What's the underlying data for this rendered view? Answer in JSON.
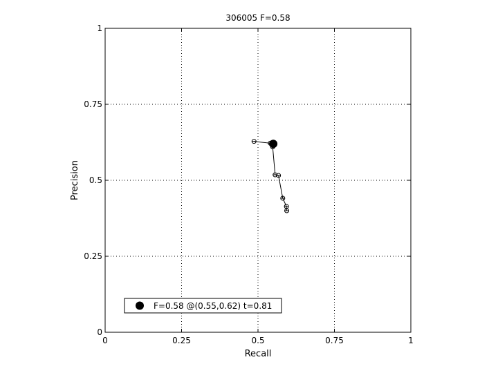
{
  "chart_data": {
    "type": "line",
    "title": "306005 F=0.58",
    "xlabel": "Recall",
    "ylabel": "Precision",
    "xlim": [
      0,
      1
    ],
    "ylim": [
      0,
      1
    ],
    "xticks": [
      0,
      0.25,
      0.5,
      0.75,
      1
    ],
    "yticks": [
      0,
      0.25,
      0.5,
      0.75,
      1
    ],
    "xtick_labels": [
      "0",
      "0.25",
      "0.5",
      "0.75",
      "1"
    ],
    "ytick_labels": [
      "0",
      "0.25",
      "0.5",
      "0.75",
      "1"
    ],
    "grid": true,
    "legend_position": "bottom-left",
    "series": [
      {
        "x": [
          0.487,
          0.54,
          0.545,
          0.548,
          0.556,
          0.567,
          0.581,
          0.593,
          0.594
        ],
        "y": [
          0.628,
          0.622,
          0.618,
          0.61,
          0.518,
          0.516,
          0.441,
          0.414,
          0.4
        ],
        "marker": "circle",
        "color": "#000000"
      }
    ],
    "best_point": {
      "x": 0.55,
      "y": 0.62,
      "marker": "filled-circle",
      "color": "#000000"
    },
    "legend": {
      "entries": [
        {
          "label": "F=0.58 @(0.55,0.62) t=0.81"
        }
      ]
    }
  }
}
